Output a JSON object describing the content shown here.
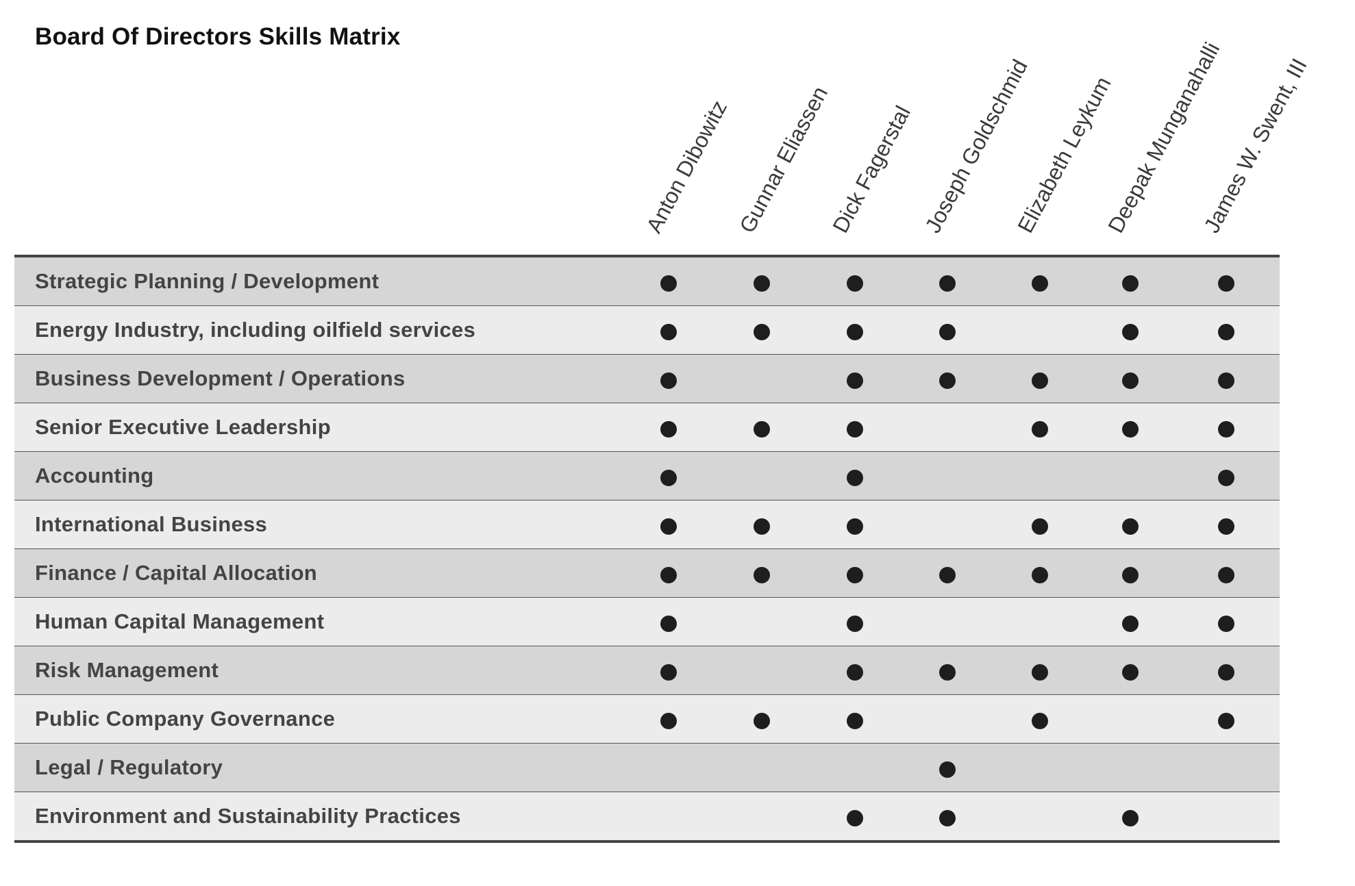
{
  "title": "Board Of Directors Skills Matrix",
  "directors": [
    "Anton Dibowitz",
    "Gunnar Eliassen",
    "Dick Fagerstal",
    "Joseph Goldschmid",
    "Elizabeth Leykum",
    "Deepak Munganahalli",
    "James W. Swent, III"
  ],
  "skills": [
    {
      "label": "Strategic Planning / Development",
      "marks": [
        1,
        1,
        1,
        1,
        1,
        1,
        1
      ]
    },
    {
      "label": "Energy Industry, including oilfield services",
      "marks": [
        1,
        1,
        1,
        1,
        0,
        1,
        1
      ]
    },
    {
      "label": "Business Development / Operations",
      "marks": [
        1,
        0,
        1,
        1,
        1,
        1,
        1
      ]
    },
    {
      "label": "Senior Executive Leadership",
      "marks": [
        1,
        1,
        1,
        0,
        1,
        1,
        1
      ]
    },
    {
      "label": "Accounting",
      "marks": [
        1,
        0,
        1,
        0,
        0,
        0,
        1
      ]
    },
    {
      "label": "International Business",
      "marks": [
        1,
        1,
        1,
        0,
        1,
        1,
        1
      ]
    },
    {
      "label": "Finance / Capital Allocation",
      "marks": [
        1,
        1,
        1,
        1,
        1,
        1,
        1
      ]
    },
    {
      "label": "Human Capital Management",
      "marks": [
        1,
        0,
        1,
        0,
        0,
        1,
        1
      ]
    },
    {
      "label": "Risk Management",
      "marks": [
        1,
        0,
        1,
        1,
        1,
        1,
        1
      ]
    },
    {
      "label": "Public Company Governance",
      "marks": [
        1,
        1,
        1,
        0,
        1,
        0,
        1
      ]
    },
    {
      "label": "Legal / Regulatory",
      "marks": [
        0,
        0,
        0,
        1,
        0,
        0,
        0
      ]
    },
    {
      "label": "Environment and Sustainability Practices",
      "marks": [
        0,
        0,
        1,
        1,
        0,
        1,
        0
      ]
    }
  ],
  "colors": {
    "dark_row": "#d6d6d6",
    "light_row": "#ececec",
    "dot": "#1e1e1e",
    "rule": "#444444"
  }
}
